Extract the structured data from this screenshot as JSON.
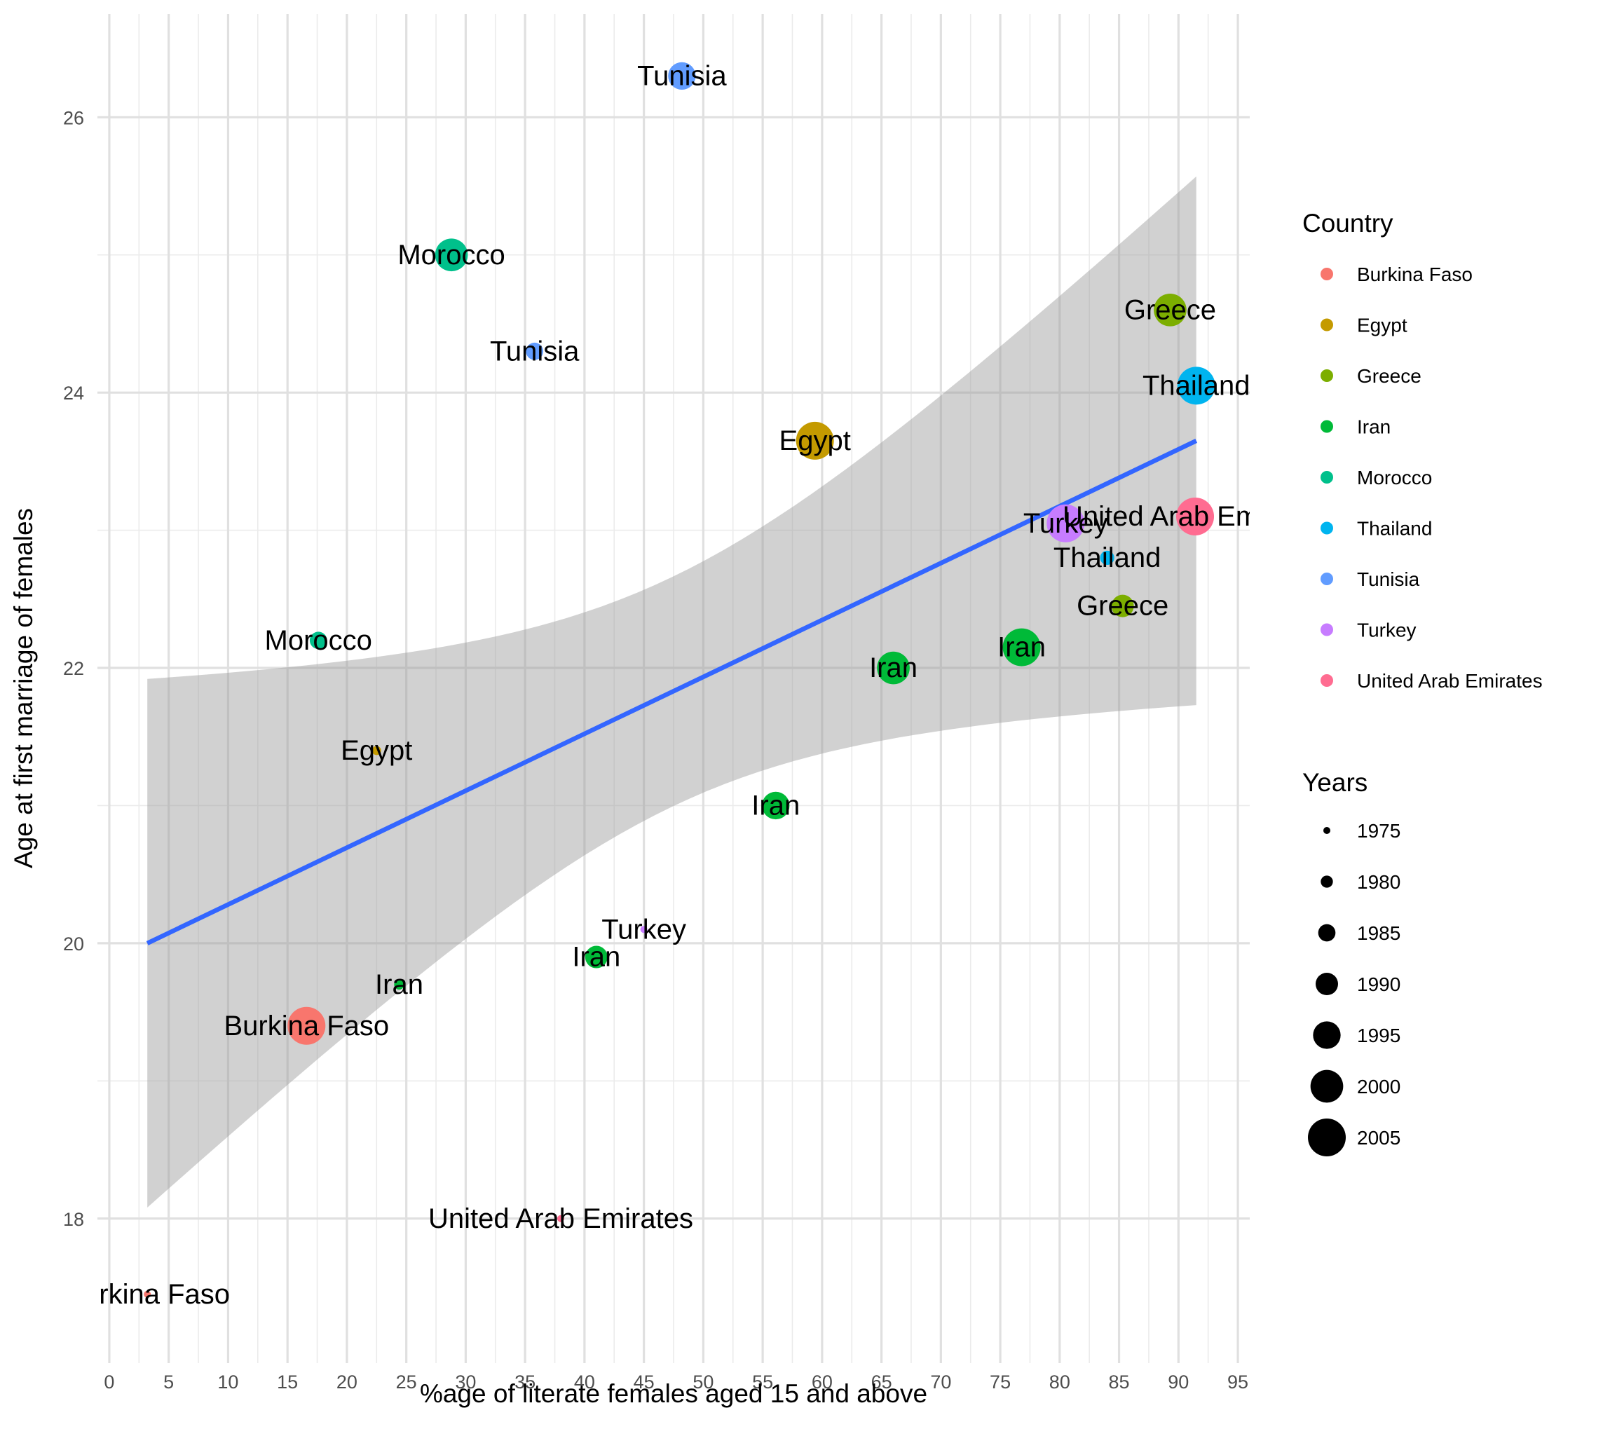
{
  "chart_data": {
    "type": "scatter",
    "xlabel": "%age of literate females aged 15 and above",
    "ylabel": "Age at first marriage of females",
    "xlim": [
      -1,
      96
    ],
    "ylim": [
      16.95,
      26.75
    ],
    "x_ticks": [
      0,
      5,
      10,
      15,
      20,
      25,
      30,
      35,
      40,
      45,
      50,
      55,
      60,
      65,
      70,
      75,
      80,
      85,
      90,
      95
    ],
    "y_ticks": [
      18,
      20,
      22,
      24,
      26
    ],
    "grid": true,
    "colors": {
      "Burkina Faso": "#F8766D",
      "Egypt": "#C49A00",
      "Greece": "#7CAE00",
      "Iran": "#00BA38",
      "Morocco": "#00C08B",
      "Thailand": "#00B4EF",
      "Tunisia": "#619CFF",
      "Turkey": "#C77CFF",
      "United Arab Emirates": "#FF6C91"
    },
    "points": [
      {
        "country": "Burkina Faso",
        "label": "Burkina Faso",
        "x": 3.2,
        "y": 17.45,
        "year": 1975
      },
      {
        "country": "Burkina Faso",
        "label": "Burkina Faso",
        "x": 16.6,
        "y": 19.4,
        "year": 2005
      },
      {
        "country": "Egypt",
        "label": "Egypt",
        "x": 22.5,
        "y": 21.4,
        "year": 1977
      },
      {
        "country": "Egypt",
        "label": "Egypt",
        "x": 59.4,
        "y": 23.65,
        "year": 2005
      },
      {
        "country": "Greece",
        "label": "Greece",
        "x": 85.3,
        "y": 22.45,
        "year": 1990
      },
      {
        "country": "Greece",
        "label": "Greece",
        "x": 89.3,
        "y": 24.6,
        "year": 2000
      },
      {
        "country": "Iran",
        "label": "Iran",
        "x": 24.4,
        "y": 19.7,
        "year": 1978
      },
      {
        "country": "Iran",
        "label": "Iran",
        "x": 41.0,
        "y": 19.9,
        "year": 1990
      },
      {
        "country": "Iran",
        "label": "Iran",
        "x": 56.1,
        "y": 21.0,
        "year": 1995
      },
      {
        "country": "Iran",
        "label": "Iran",
        "x": 66.0,
        "y": 22.0,
        "year": 2000
      },
      {
        "country": "Iran",
        "label": "Iran",
        "x": 76.8,
        "y": 22.15,
        "year": 2005
      },
      {
        "country": "Morocco",
        "label": "Morocco",
        "x": 17.6,
        "y": 22.2,
        "year": 1985
      },
      {
        "country": "Morocco",
        "label": "Morocco",
        "x": 28.8,
        "y": 25.0,
        "year": 2000
      },
      {
        "country": "Thailand",
        "label": "Thailand",
        "x": 84.0,
        "y": 22.8,
        "year": 1982
      },
      {
        "country": "Thailand",
        "label": "Thailand",
        "x": 91.5,
        "y": 24.05,
        "year": 2005
      },
      {
        "country": "Tunisia",
        "label": "Tunisia",
        "x": 35.8,
        "y": 24.3,
        "year": 1985
      },
      {
        "country": "Tunisia",
        "label": "Tunisia",
        "x": 48.2,
        "y": 26.3,
        "year": 1995
      },
      {
        "country": "Turkey",
        "label": "Turkey",
        "x": 45.0,
        "y": 20.1,
        "year": 1975
      },
      {
        "country": "Turkey",
        "label": "Turkey",
        "x": 80.5,
        "y": 23.05,
        "year": 2005
      },
      {
        "country": "United Arab Emirates",
        "label": "United Arab Emirates",
        "x": 38.0,
        "y": 18.0,
        "year": 1975
      },
      {
        "country": "United Arab Emirates",
        "label": "United Arab Emirates",
        "x": 91.4,
        "y": 23.1,
        "year": 2005
      }
    ],
    "trend": {
      "type": "lm",
      "x_range": [
        3.2,
        91.5
      ],
      "line_y": [
        20.0,
        23.65
      ],
      "ci_lower": [
        18.08,
        22.03
      ],
      "ci_upper": [
        21.92,
        25.28
      ],
      "color": "#3366FF",
      "ribbon_color": "#999999"
    },
    "legend": {
      "placement": "right",
      "country_title": "Country",
      "countries": [
        "Burkina Faso",
        "Egypt",
        "Greece",
        "Iran",
        "Morocco",
        "Thailand",
        "Tunisia",
        "Turkey",
        "United Arab Emirates"
      ],
      "years_title": "Years",
      "years": [
        1975,
        1980,
        1985,
        1990,
        1995,
        2000,
        2005
      ]
    }
  }
}
